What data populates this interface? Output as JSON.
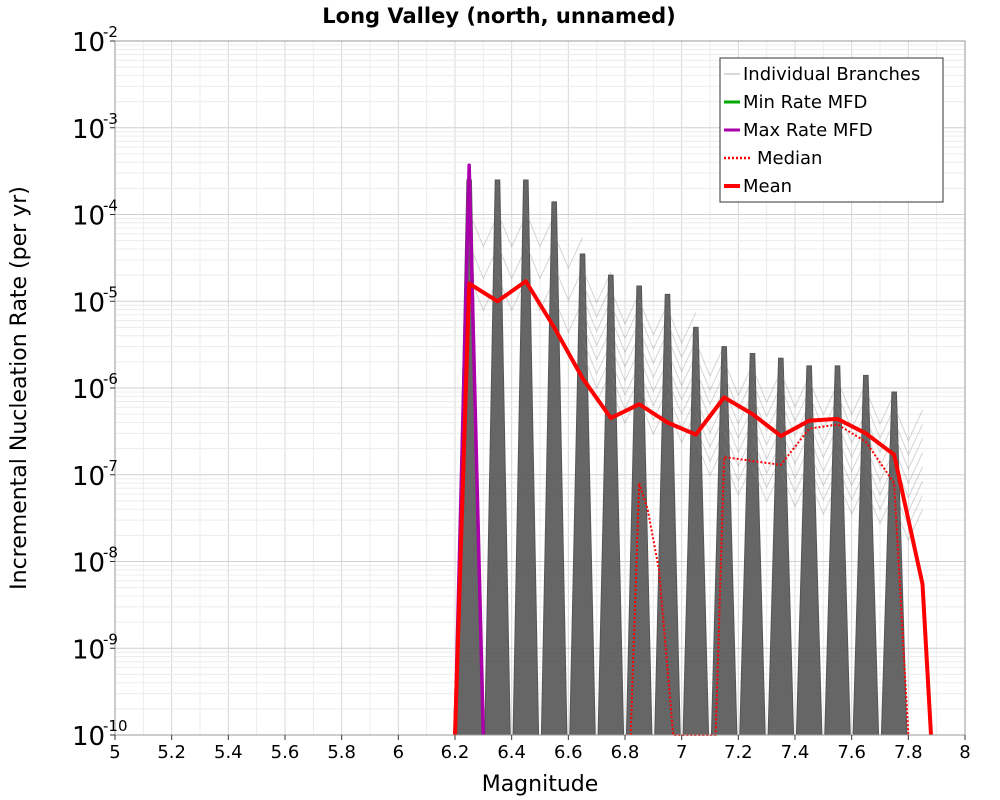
{
  "chart_data": {
    "type": "line",
    "title": "Long Valley (north, unnamed)",
    "xlabel": "Magnitude",
    "ylabel": "Incremental Nucleation Rate (per yr)",
    "xlim": [
      5,
      8
    ],
    "ylim": [
      1e-10,
      0.01
    ],
    "y_scale": "log",
    "grid": true,
    "legend_position": "top-right",
    "x_ticks": [
      "5",
      "5.2",
      "5.4",
      "5.6",
      "5.8",
      "6",
      "6.2",
      "6.4",
      "6.6",
      "6.8",
      "7",
      "7.2",
      "7.4",
      "7.6",
      "7.8",
      "8"
    ],
    "y_ticks": [
      {
        "base": "10",
        "exp": "-10",
        "value": 1e-10
      },
      {
        "base": "10",
        "exp": "-9",
        "value": 1e-09
      },
      {
        "base": "10",
        "exp": "-8",
        "value": 1e-08
      },
      {
        "base": "10",
        "exp": "-7",
        "value": 1e-07
      },
      {
        "base": "10",
        "exp": "-6",
        "value": 1e-06
      },
      {
        "base": "10",
        "exp": "-5",
        "value": 1e-05
      },
      {
        "base": "10",
        "exp": "-4",
        "value": 0.0001
      },
      {
        "base": "10",
        "exp": "-3",
        "value": 0.001
      },
      {
        "base": "10",
        "exp": "-2",
        "value": 0.01
      }
    ],
    "legend": [
      {
        "label": "Individual Branches",
        "color": "#b0b0b0",
        "style": "thin"
      },
      {
        "label": "Min Rate MFD",
        "color": "#00aa00",
        "style": "solid"
      },
      {
        "label": "Max Rate MFD",
        "color": "#aa00aa",
        "style": "solid"
      },
      {
        "label": "Median",
        "color": "#ff0000",
        "style": "dotted"
      },
      {
        "label": "Mean",
        "color": "#ff0000",
        "style": "thick"
      }
    ],
    "series": [
      {
        "name": "Mean",
        "color": "#ff0000",
        "x": [
          6.2,
          6.25,
          6.35,
          6.45,
          6.55,
          6.65,
          6.75,
          6.85,
          6.95,
          7.05,
          7.15,
          7.25,
          7.35,
          7.45,
          7.55,
          7.65,
          7.75,
          7.85,
          7.88
        ],
        "y": [
          1e-10,
          1.6e-05,
          1e-05,
          1.7e-05,
          5e-06,
          1.3e-06,
          4.5e-07,
          6.5e-07,
          4e-07,
          2.9e-07,
          7.8e-07,
          5e-07,
          2.8e-07,
          4.2e-07,
          4.4e-07,
          3e-07,
          1.7e-07,
          5.5e-09,
          1e-10
        ]
      },
      {
        "name": "Median",
        "color": "#ff0000",
        "x": [
          6.82,
          6.85,
          6.88,
          6.92,
          6.97,
          7.12,
          7.15,
          7.35,
          7.45,
          7.55,
          7.65,
          7.75,
          7.8
        ],
        "y": [
          1e-10,
          8e-08,
          4e-08,
          8e-09,
          1e-10,
          1e-10,
          1.6e-07,
          1.3e-07,
          3.4e-07,
          3.8e-07,
          2.4e-07,
          8e-08,
          1e-10
        ]
      },
      {
        "name": "Max Rate MFD",
        "color": "#aa00aa",
        "x": [
          6.2,
          6.25,
          6.3
        ],
        "y": [
          1e-10,
          0.00037,
          1e-10
        ]
      },
      {
        "name": "Min Rate MFD",
        "color": "#00aa00",
        "x": [],
        "y": []
      }
    ],
    "branch_spikes": [
      {
        "x": 6.25,
        "peak": 0.00025
      },
      {
        "x": 6.35,
        "peak": 0.00025
      },
      {
        "x": 6.45,
        "peak": 0.00025
      },
      {
        "x": 6.55,
        "peak": 0.00014
      },
      {
        "x": 6.65,
        "peak": 3.5e-05
      },
      {
        "x": 6.75,
        "peak": 2e-05
      },
      {
        "x": 6.85,
        "peak": 1.5e-05
      },
      {
        "x": 6.95,
        "peak": 1.2e-05
      },
      {
        "x": 7.05,
        "peak": 5e-06
      },
      {
        "x": 7.15,
        "peak": 3e-06
      },
      {
        "x": 7.25,
        "peak": 2.5e-06
      },
      {
        "x": 7.35,
        "peak": 2.2e-06
      },
      {
        "x": 7.45,
        "peak": 1.8e-06
      },
      {
        "x": 7.55,
        "peak": 1.8e-06
      },
      {
        "x": 7.65,
        "peak": 1.4e-06
      },
      {
        "x": 7.75,
        "peak": 9e-07
      }
    ]
  }
}
